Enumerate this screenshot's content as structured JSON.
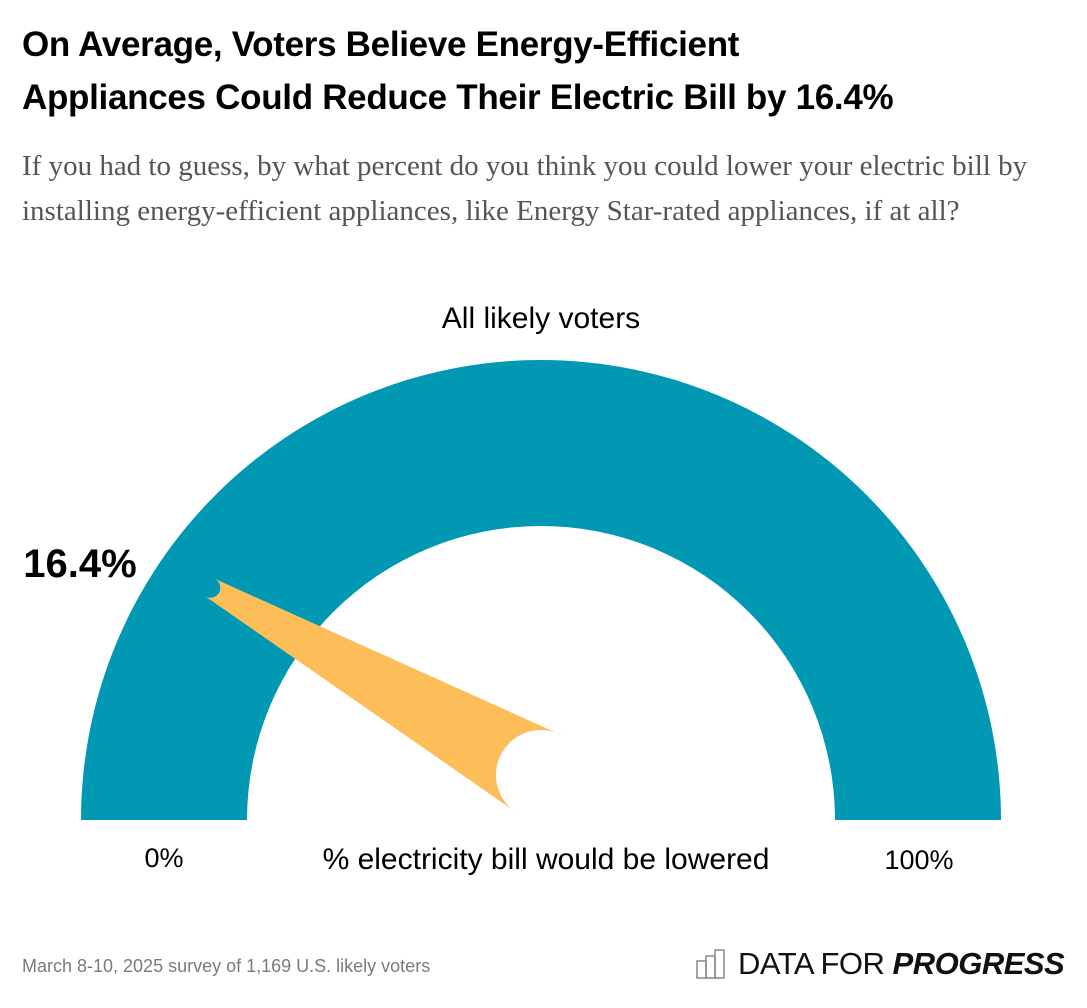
{
  "header": {
    "title_line1": "On Average, Voters Believe Energy-Efficient",
    "title_line2": "Appliances Could Reduce Their Electric Bill by 16.4%",
    "subtitle": "If you had to guess, by what percent do you think you could lower your electric bill by installing energy-efficient appliances, like Energy Star-rated appliances, if at all?"
  },
  "chart_data": {
    "type": "gauge",
    "title": "All likely voters",
    "value": 16.4,
    "value_label": "16.4%",
    "range": [
      0,
      100
    ],
    "min_label": "0%",
    "max_label": "100%",
    "xlabel": "% electricity bill would be lowered",
    "colors": {
      "arc": "#0098B3",
      "needle": "#FDBD59"
    }
  },
  "footer": {
    "note": "March 8-10, 2025 survey of 1,169 U.S. likely voters",
    "logo_light": "DATA FOR ",
    "logo_bold": "PROGRESS",
    "logo_icon": "bar-chart-icon"
  }
}
